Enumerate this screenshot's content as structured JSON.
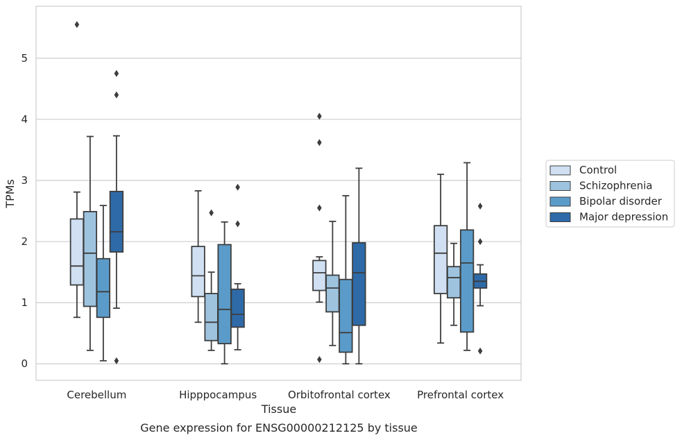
{
  "chart_data": {
    "type": "box",
    "title": "",
    "caption": "Gene expression for ENSG00000212125 by tissue",
    "xlabel": "Tissue",
    "ylabel": "TPMs",
    "ylim": [
      -0.27,
      5.85
    ],
    "yticks": [
      0,
      1,
      2,
      3,
      4,
      5
    ],
    "grid": "horizontal",
    "legend_position": "right",
    "categories": [
      "Cerebellum",
      "Hipppocampus",
      "Orbitofrontal cortex",
      "Prefrontal cortex"
    ],
    "series": [
      {
        "name": "Control",
        "color": "#d0e0f2",
        "boxes": [
          {
            "whislo": 0.76,
            "q1": 1.29,
            "med": 1.6,
            "q3": 2.37,
            "whishi": 2.81,
            "fliers": [
              5.55
            ]
          },
          {
            "whislo": 0.68,
            "q1": 1.1,
            "med": 1.44,
            "q3": 1.92,
            "whishi": 2.83,
            "fliers": []
          },
          {
            "whislo": 1.01,
            "q1": 1.2,
            "med": 1.49,
            "q3": 1.69,
            "whishi": 1.75,
            "fliers": [
              4.05,
              3.62,
              2.55,
              0.07
            ]
          },
          {
            "whislo": 0.34,
            "q1": 1.15,
            "med": 1.81,
            "q3": 2.26,
            "whishi": 3.1,
            "fliers": []
          }
        ]
      },
      {
        "name": "Schizophrenia",
        "color": "#9dc3df",
        "boxes": [
          {
            "whislo": 0.22,
            "q1": 0.94,
            "med": 1.81,
            "q3": 2.49,
            "whishi": 3.72,
            "fliers": []
          },
          {
            "whislo": 0.22,
            "q1": 0.38,
            "med": 0.68,
            "q3": 1.15,
            "whishi": 1.5,
            "fliers": [
              2.47
            ]
          },
          {
            "whislo": 0.3,
            "q1": 0.85,
            "med": 1.24,
            "q3": 1.45,
            "whishi": 2.33,
            "fliers": []
          },
          {
            "whislo": 0.63,
            "q1": 1.08,
            "med": 1.41,
            "q3": 1.59,
            "whishi": 1.97,
            "fliers": []
          }
        ]
      },
      {
        "name": "Bipolar disorder",
        "color": "#5b9bc9",
        "boxes": [
          {
            "whislo": 0.05,
            "q1": 0.76,
            "med": 1.18,
            "q3": 1.72,
            "whishi": 2.59,
            "fliers": []
          },
          {
            "whislo": 0.0,
            "q1": 0.33,
            "med": 0.89,
            "q3": 1.95,
            "whishi": 2.32,
            "fliers": []
          },
          {
            "whislo": 0.0,
            "q1": 0.19,
            "med": 0.51,
            "q3": 1.38,
            "whishi": 2.75,
            "fliers": []
          },
          {
            "whislo": 0.22,
            "q1": 0.52,
            "med": 1.65,
            "q3": 2.19,
            "whishi": 3.29,
            "fliers": []
          }
        ]
      },
      {
        "name": "Major depression",
        "color": "#2e6aa8",
        "boxes": [
          {
            "whislo": 0.91,
            "q1": 1.83,
            "med": 2.16,
            "q3": 2.82,
            "whishi": 3.73,
            "fliers": [
              4.75,
              4.4,
              0.05
            ]
          },
          {
            "whislo": 0.23,
            "q1": 0.6,
            "med": 0.81,
            "q3": 1.22,
            "whishi": 1.31,
            "fliers": [
              2.89,
              2.29
            ]
          },
          {
            "whislo": 0.0,
            "q1": 0.63,
            "med": 1.49,
            "q3": 1.98,
            "whishi": 3.2,
            "fliers": []
          },
          {
            "whislo": 0.95,
            "q1": 1.24,
            "med": 1.35,
            "q3": 1.47,
            "whishi": 1.62,
            "fliers": [
              2.58,
              2.0,
              0.21
            ]
          }
        ]
      }
    ]
  }
}
